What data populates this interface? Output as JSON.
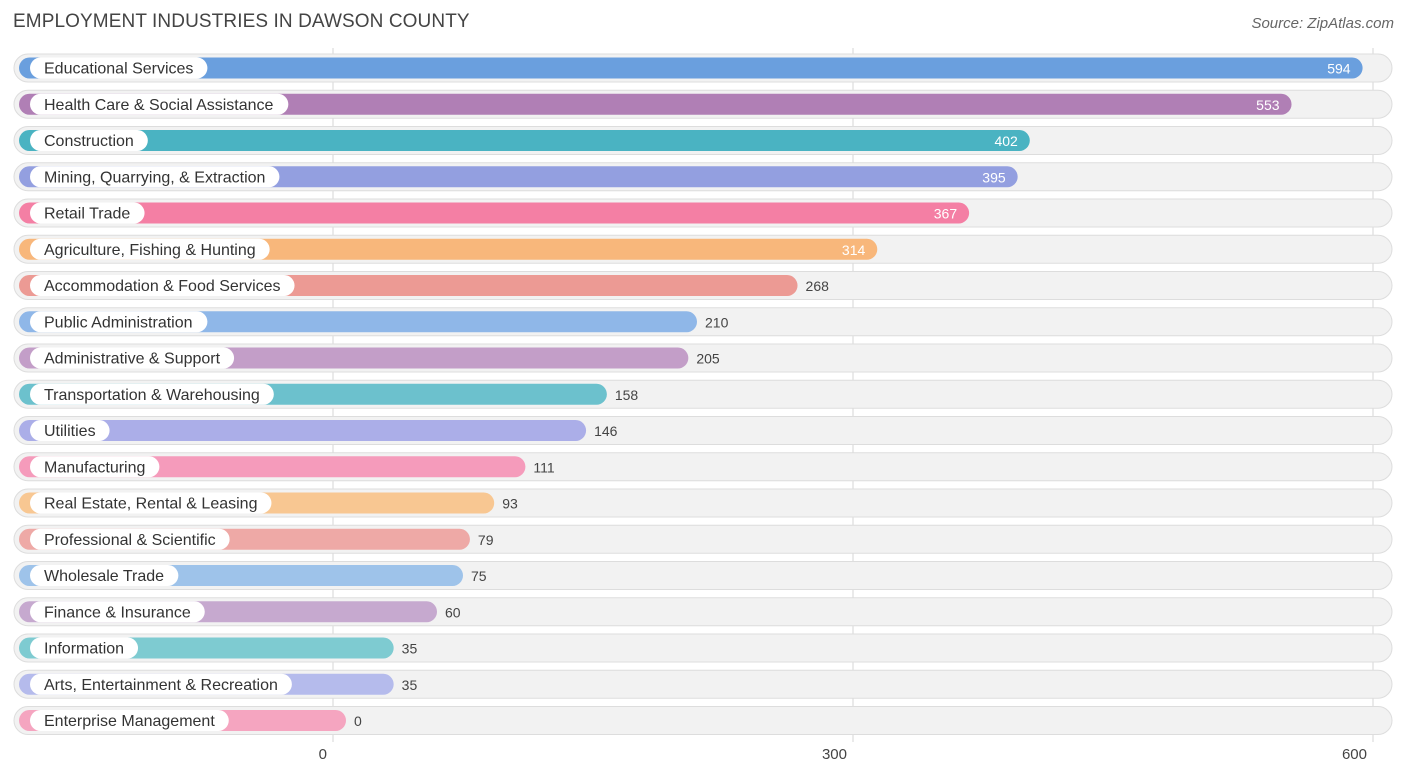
{
  "chart_data": {
    "type": "bar",
    "orientation": "horizontal",
    "title": "EMPLOYMENT INDUSTRIES IN DAWSON COUNTY",
    "source": "Source: ZipAtlas.com",
    "xlim": [
      0,
      600
    ],
    "xticks": [
      0,
      300,
      600
    ],
    "categories": [
      "Educational Services",
      "Health Care & Social Assistance",
      "Construction",
      "Mining, Quarrying, & Extraction",
      "Retail Trade",
      "Agriculture, Fishing & Hunting",
      "Accommodation & Food Services",
      "Public Administration",
      "Administrative & Support",
      "Transportation & Warehousing",
      "Utilities",
      "Manufacturing",
      "Real Estate, Rental & Leasing",
      "Professional & Scientific",
      "Wholesale Trade",
      "Finance & Insurance",
      "Information",
      "Arts, Entertainment & Recreation",
      "Enterprise Management"
    ],
    "values": [
      594,
      553,
      402,
      395,
      367,
      314,
      268,
      210,
      205,
      158,
      146,
      111,
      93,
      79,
      75,
      60,
      35,
      35,
      0
    ],
    "colors": [
      "#6a9fde",
      "#b07fb5",
      "#4ab3c2",
      "#939fe0",
      "#f47fa4",
      "#f8b77b",
      "#ec9a94",
      "#8fb7e8",
      "#c39ec8",
      "#6cc1cd",
      "#abaee8",
      "#f59bbb",
      "#f8c792",
      "#eea9a6",
      "#9ec3ea",
      "#c6a9cf",
      "#7ecbd1",
      "#b5bbec",
      "#f5a5c0"
    ],
    "grid": true
  }
}
